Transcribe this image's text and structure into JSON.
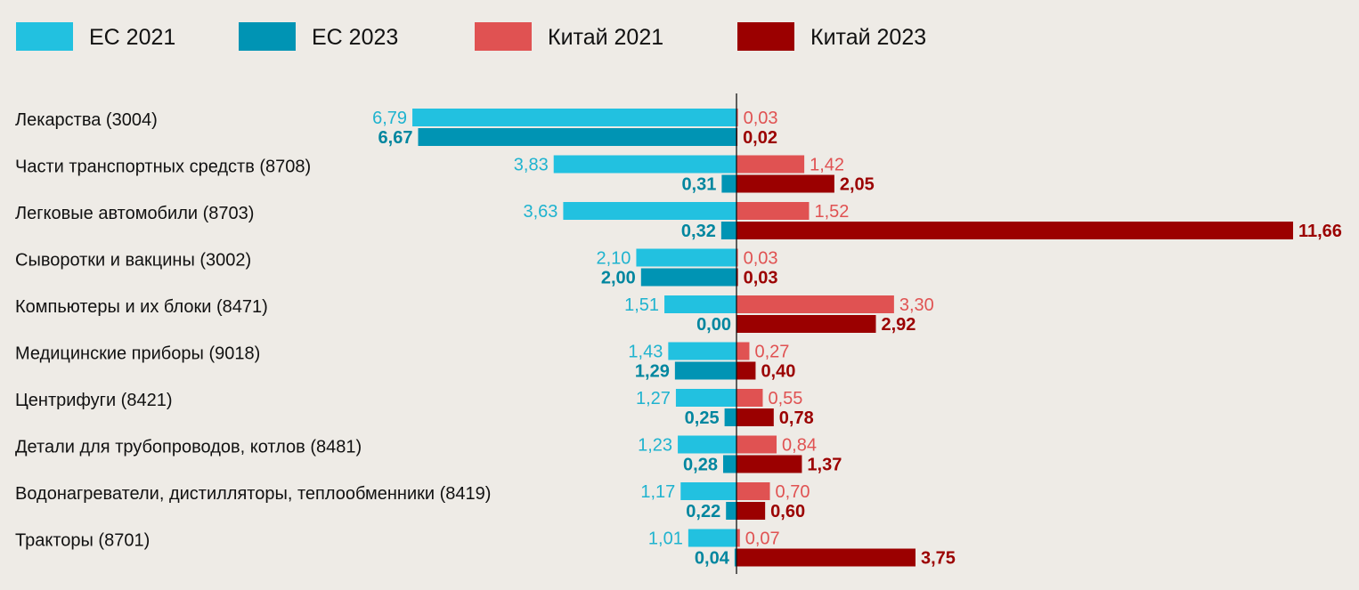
{
  "chart_data": {
    "type": "bar",
    "orientation": "horizontal-diverging",
    "title": "",
    "legend_position": "top",
    "series": [
      {
        "name": "ЕС 2021",
        "color": "#22c1e0",
        "side": "left",
        "values": [
          6.79,
          3.83,
          3.63,
          2.1,
          1.51,
          1.43,
          1.27,
          1.23,
          1.17,
          1.01
        ],
        "labels": [
          "6,79",
          "3,83",
          "3,63",
          "2,10",
          "1,51",
          "1,43",
          "1,27",
          "1,23",
          "1,17",
          "1,01"
        ],
        "label_color": "#1fb3cf"
      },
      {
        "name": "ЕС 2023",
        "color": "#0094b4",
        "side": "left",
        "values": [
          6.67,
          0.31,
          0.32,
          2.0,
          0.0,
          1.29,
          0.25,
          0.28,
          0.22,
          0.04
        ],
        "labels": [
          "6,67",
          "0,31",
          "0,32",
          "2,00",
          "0,00",
          "1,29",
          "0,25",
          "0,28",
          "0,22",
          "0,04"
        ],
        "label_color": "#00869f"
      },
      {
        "name": "Китай 2021",
        "color": "#e05252",
        "side": "right",
        "values": [
          0.03,
          1.42,
          1.52,
          0.03,
          3.3,
          0.27,
          0.55,
          0.84,
          0.7,
          0.07
        ],
        "labels": [
          "0,03",
          "1,42",
          "1,52",
          "0,03",
          "3,30",
          "0,27",
          "0,55",
          "0,84",
          "0,70",
          "0,07"
        ],
        "label_color": "#e05252"
      },
      {
        "name": "Китай 2023",
        "color": "#9b0000",
        "side": "right",
        "values": [
          0.02,
          2.05,
          11.66,
          0.03,
          2.92,
          0.4,
          0.78,
          1.37,
          0.6,
          3.75
        ],
        "labels": [
          "0,02",
          "2,05",
          "11,66",
          "0,03",
          "2,92",
          "0,40",
          "0,78",
          "1,37",
          "0,60",
          "3,75"
        ],
        "label_color": "#9b0000"
      }
    ],
    "categories": [
      "Лекарства (3004)",
      "Части транспортных средств (8708)",
      "Легковые автомобили (8703)",
      "Сыворотки и вакцины (3002)",
      "Компьютеры и их блоки (8471)",
      "Медицинские приборы (9018)",
      "Центрифуги (8421)",
      "Детали для трубопроводов, котлов (8481)",
      "Водонагреватели, дистилляторы, теплообменники (8419)",
      "Тракторы (8701)"
    ]
  }
}
